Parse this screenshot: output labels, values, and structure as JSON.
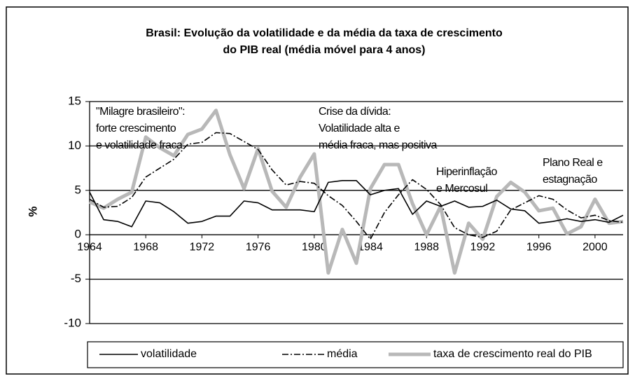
{
  "chart_data": {
    "type": "line",
    "title": [
      "Brasil: Evolução da volatilidade e da média da taxa de crescimento",
      "do PIB real (média móvel para 4 anos)"
    ],
    "y_label": "%",
    "x": [
      1964,
      1965,
      1966,
      1967,
      1968,
      1969,
      1970,
      1971,
      1972,
      1973,
      1974,
      1975,
      1976,
      1977,
      1978,
      1979,
      1980,
      1981,
      1982,
      1983,
      1984,
      1985,
      1986,
      1987,
      1988,
      1989,
      1990,
      1991,
      1992,
      1993,
      1994,
      1995,
      1996,
      1997,
      1998,
      1999,
      2000,
      2001,
      2002
    ],
    "xlim": [
      1964,
      2002
    ],
    "xticks": [
      1964,
      1968,
      1972,
      1976,
      1980,
      1984,
      1988,
      1992,
      1996,
      2000
    ],
    "ylim": [
      -10,
      15
    ],
    "yticks": [
      -10,
      -5,
      0,
      5,
      10,
      15
    ],
    "grid": true,
    "legend": "bottom",
    "series": [
      {
        "name": "volatilidade",
        "color": "#000000",
        "style": "solid",
        "values": [
          4.8,
          1.7,
          1.5,
          0.9,
          3.8,
          3.6,
          2.6,
          1.3,
          1.5,
          2.1,
          2.1,
          3.8,
          3.6,
          2.8,
          2.8,
          2.8,
          2.6,
          5.9,
          6.1,
          6.1,
          4.5,
          5.0,
          5.2,
          2.3,
          3.8,
          3.2,
          3.8,
          3.1,
          3.2,
          3.9,
          2.9,
          2.7,
          1.3,
          1.5,
          1.8,
          1.5,
          1.7,
          1.4,
          2.2
        ]
      },
      {
        "name": "média",
        "color": "#000000",
        "style": "dashdot",
        "values": [
          4.0,
          3.1,
          3.2,
          4.2,
          6.5,
          7.5,
          8.5,
          10.2,
          10.4,
          11.5,
          11.4,
          10.5,
          9.6,
          7.3,
          5.6,
          6.0,
          5.8,
          4.4,
          3.3,
          1.5,
          -0.5,
          2.5,
          4.5,
          6.2,
          5.1,
          3.4,
          0.8,
          0.0,
          -0.3,
          0.4,
          2.8,
          3.6,
          4.4,
          4.0,
          2.8,
          1.9,
          2.2,
          1.6,
          1.4
        ]
      },
      {
        "name": "taxa de crescimento real do PIB",
        "color": "#b8b8b8",
        "style": "thick",
        "values": [
          3.7,
          3.0,
          4.0,
          4.8,
          11.0,
          9.8,
          8.9,
          11.3,
          11.9,
          14.0,
          9.0,
          5.2,
          9.7,
          4.9,
          3.1,
          6.5,
          9.1,
          -4.3,
          0.6,
          -3.2,
          5.2,
          7.9,
          7.9,
          3.5,
          0.0,
          3.2,
          -4.3,
          1.3,
          -0.5,
          4.3,
          5.9,
          4.8,
          2.7,
          3.0,
          0.1,
          0.9,
          4.0,
          1.3,
          1.5
        ]
      }
    ],
    "annotations": [
      [
        "\"Milagre brasileiro\":",
        "forte crescimento",
        "e volatilidade fraca"
      ],
      [
        "Crise da dívida:",
        "Volatilidade alta e",
        "média fraca, mas positiva"
      ],
      [
        "Hiperinflação",
        "e Mercosul"
      ],
      [
        "Plano Real e",
        "estagnação"
      ]
    ]
  }
}
